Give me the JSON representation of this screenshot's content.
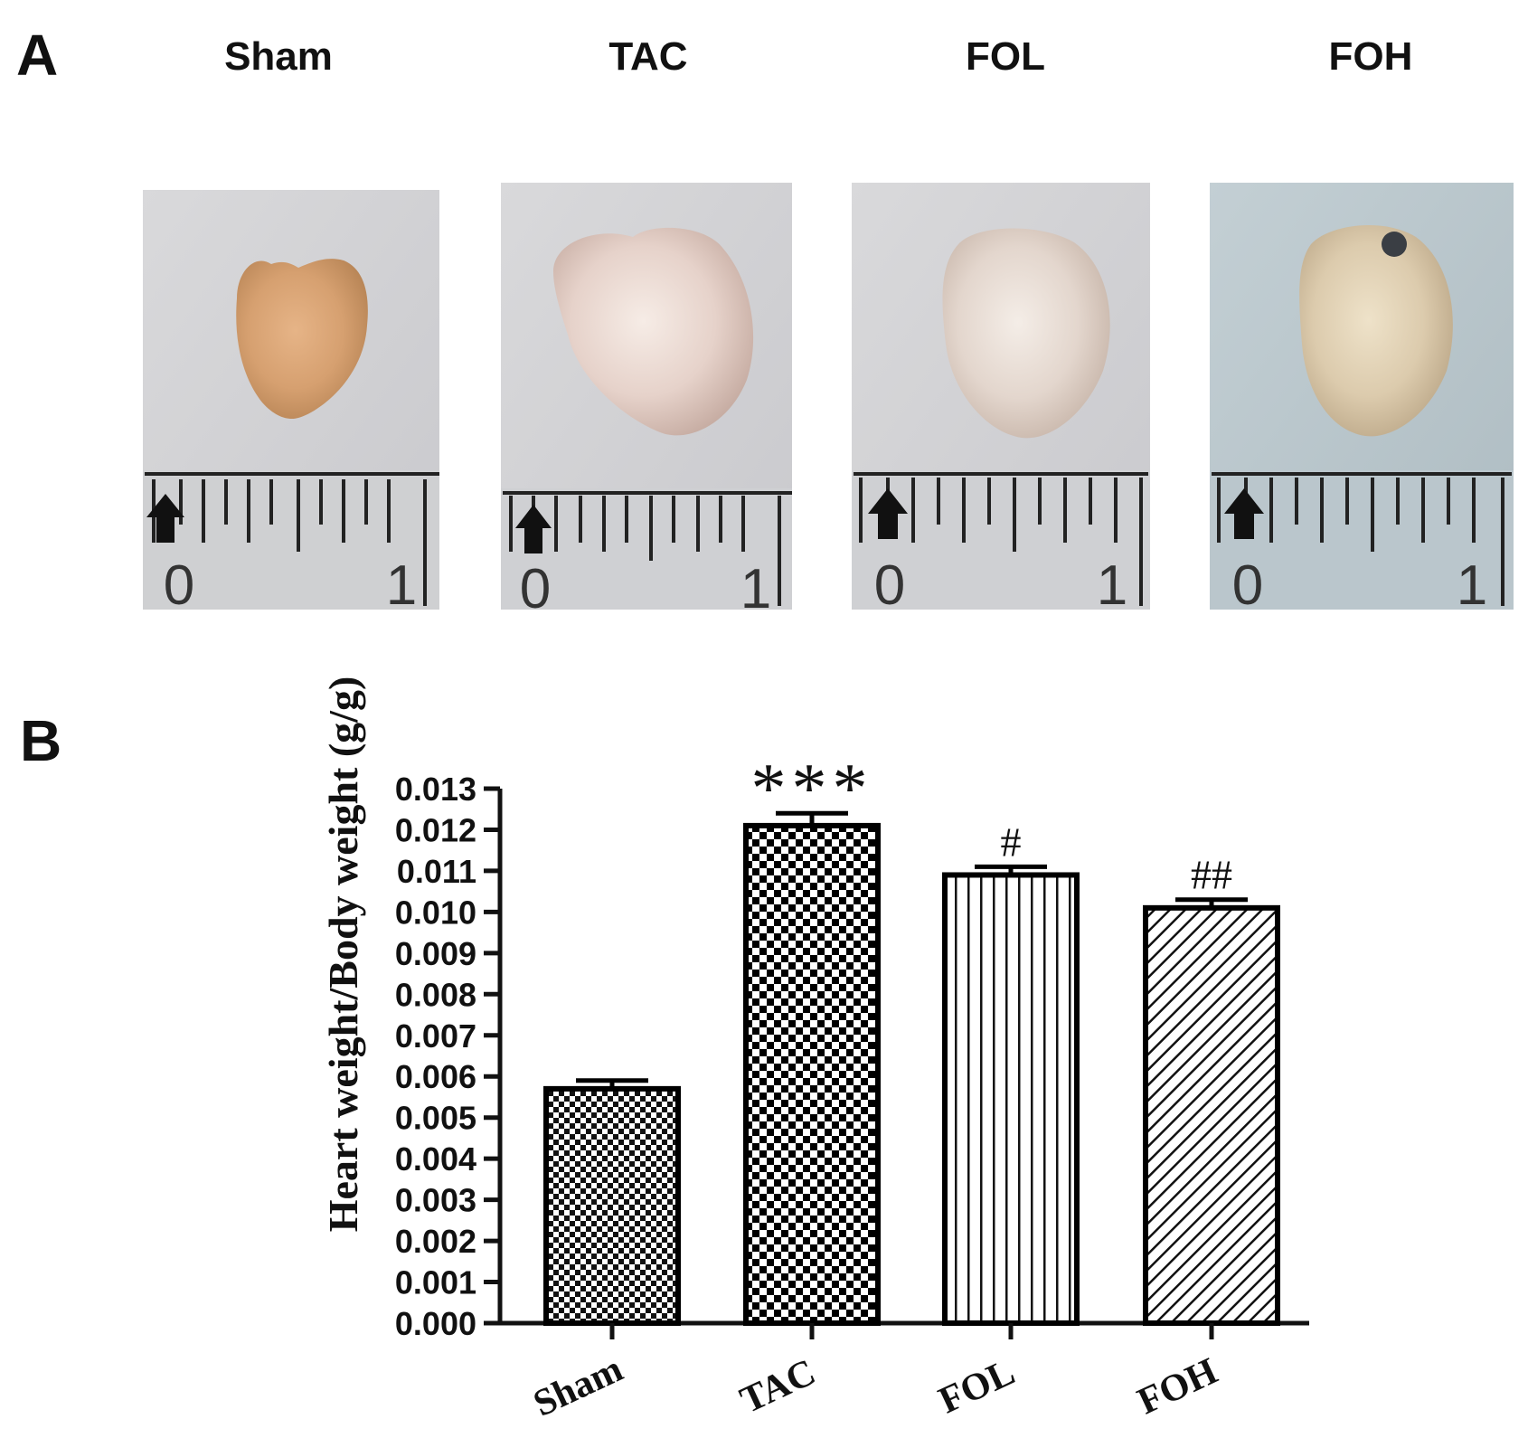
{
  "panel_a": {
    "letter": "A",
    "groups": [
      "Sham",
      "TAC",
      "FOL",
      "FOH"
    ],
    "ruler": {
      "start_label": "0",
      "end_label": "1"
    }
  },
  "panel_b": {
    "letter": "B"
  },
  "chart_data": {
    "type": "bar",
    "title": "",
    "xlabel": "",
    "ylabel": "Heart weight/Body weight (g/g)",
    "categories": [
      "Sham",
      "TAC",
      "FOL",
      "FOH"
    ],
    "values": [
      0.0057,
      0.0121,
      0.0109,
      0.0101
    ],
    "errors": [
      0.0002,
      0.0003,
      0.0002,
      0.0002
    ],
    "annotations": [
      "",
      "***",
      "#",
      "##"
    ],
    "patterns": [
      "fine-checker",
      "bold-checker",
      "vertical-lines",
      "diagonal-lines"
    ],
    "ylim": [
      0,
      0.013
    ],
    "yticks": [
      "0.000",
      "0.001",
      "0.002",
      "0.003",
      "0.004",
      "0.005",
      "0.006",
      "0.007",
      "0.008",
      "0.009",
      "0.010",
      "0.011",
      "0.012",
      "0.013"
    ],
    "grid": false,
    "legend": "none"
  }
}
